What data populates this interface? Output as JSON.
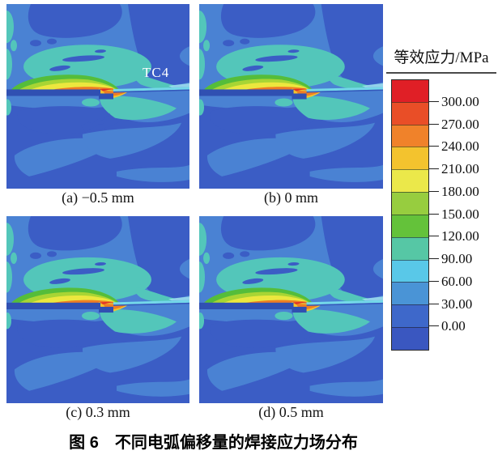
{
  "figure": {
    "caption": "图 6　不同电弧偏移量的焊接应力场分布",
    "material_label": "TC4"
  },
  "panels": [
    {
      "id": "a",
      "label": "(a) −0.5 mm",
      "arc_offset_mm": -0.5
    },
    {
      "id": "b",
      "label": "(b) 0 mm",
      "arc_offset_mm": 0
    },
    {
      "id": "c",
      "label": "(c) 0.3 mm",
      "arc_offset_mm": 0.3
    },
    {
      "id": "d",
      "label": "(d) 0.5 mm",
      "arc_offset_mm": 0.5
    }
  ],
  "legend": {
    "title": "等效应力/MPa",
    "tick_labels": [
      "300.00",
      "270.00",
      "240.00",
      "210.00",
      "180.00",
      "150.00",
      "120.00",
      "90.00",
      "60.00",
      "30.00",
      "0.00"
    ],
    "segment_colors": [
      "#e01f26",
      "#e94e27",
      "#f0822a",
      "#f3c32e",
      "#ebe84a",
      "#97cd3f",
      "#64c23a",
      "#56c7a5",
      "#59c8e8",
      "#4a94d6",
      "#3e68ca",
      "#3a57c0"
    ]
  },
  "chart_data": {
    "type": "heatmap",
    "title": "图 6　不同电弧偏移量的焊接应力场分布",
    "colorbar_label": "等效应力/MPa",
    "contour_levels_mpa": [
      0,
      30,
      60,
      90,
      120,
      150,
      180,
      210,
      240,
      270,
      300
    ],
    "colorbar_tick_labels_top_to_bottom": [
      "300.00",
      "270.00",
      "240.00",
      "210.00",
      "180.00",
      "150.00",
      "120.00",
      "90.00",
      "60.00",
      "30.00",
      "0.00"
    ],
    "colorbar_colors_top_to_bottom": [
      "#e01f26",
      "#e94e27",
      "#f0822a",
      "#f3c32e",
      "#ebe84a",
      "#97cd3f",
      "#64c23a",
      "#56c7a5",
      "#59c8e8",
      "#4a94d6",
      "#3e68ca",
      "#3a57c0"
    ],
    "legend_position": "right",
    "panels": [
      {
        "id": "a",
        "label": "(a) −0.5 mm",
        "arc_offset_mm": -0.5,
        "description": "welding equivalent stress contour, peak stress band above weld line"
      },
      {
        "id": "b",
        "label": "(b) 0 mm",
        "arc_offset_mm": 0,
        "description": "welding equivalent stress contour, peak stress band above weld line"
      },
      {
        "id": "c",
        "label": "(c) 0.3 mm",
        "arc_offset_mm": 0.3,
        "description": "welding equivalent stress contour, peak stress band above weld line"
      },
      {
        "id": "d",
        "label": "(d) 0.5 mm",
        "arc_offset_mm": 0.5,
        "description": "welding equivalent stress contour, peak stress band above weld line"
      }
    ],
    "annotations": [
      {
        "text": "TC4",
        "panel": "a"
      }
    ]
  }
}
